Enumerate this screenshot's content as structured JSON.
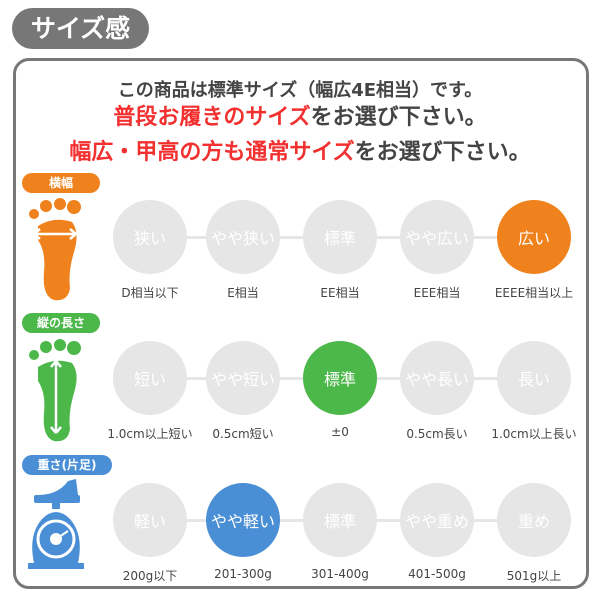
{
  "title": "サイズ感",
  "intro": {
    "line1": "この商品は標準サイズ（幅広4E相当）です。",
    "line2_red": "普段お履きのサイズ",
    "line2_rest": "をお選び下さい。",
    "line3_red": "幅広・甲高の方も通常サイズ",
    "line3_rest": "をお選び下さい。"
  },
  "colors": {
    "width": "#f0821e",
    "length": "#4cb84a",
    "weight": "#4a8fd6",
    "inactive": "#e6e6e6",
    "frame": "#777777",
    "emphasis": "#f23030"
  },
  "rows": [
    {
      "badge": "横幅",
      "icon": "foot-width-icon",
      "selected": 4,
      "options": [
        {
          "name": "狭い",
          "sub": "D相当以下"
        },
        {
          "name": "やや狭い",
          "sub": "E相当"
        },
        {
          "name": "標準",
          "sub": "EE相当"
        },
        {
          "name": "やや広い",
          "sub": "EEE相当"
        },
        {
          "name": "広い",
          "sub": "EEEE相当以上"
        }
      ]
    },
    {
      "badge": "縦の長さ",
      "icon": "foot-length-icon",
      "selected": 2,
      "options": [
        {
          "name": "短い",
          "sub": "1.0cm以上短い"
        },
        {
          "name": "やや短い",
          "sub": "0.5cm短い"
        },
        {
          "name": "標準",
          "sub": "±0"
        },
        {
          "name": "やや長い",
          "sub": "0.5cm長い"
        },
        {
          "name": "長い",
          "sub": "1.0cm以上長い"
        }
      ]
    },
    {
      "badge": "重さ(片足)",
      "icon": "scale-icon",
      "selected": 1,
      "options": [
        {
          "name": "軽い",
          "sub": "200g以下"
        },
        {
          "name": "やや軽い",
          "sub": "201-300g"
        },
        {
          "name": "標準",
          "sub": "301-400g"
        },
        {
          "name": "やや重め",
          "sub": "401-500g"
        },
        {
          "name": "重め",
          "sub": "501g以上"
        }
      ]
    }
  ]
}
